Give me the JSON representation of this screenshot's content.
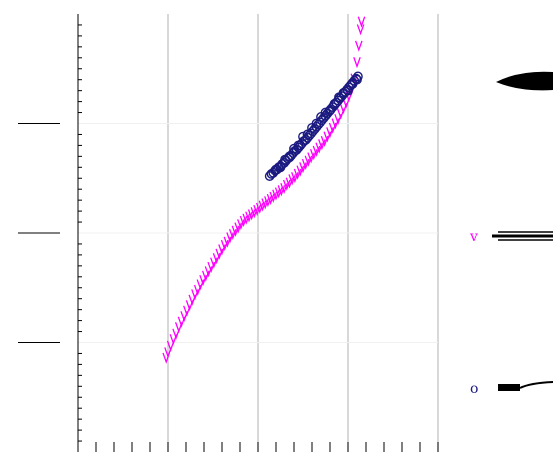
{
  "chart_data": {
    "type": "scatter",
    "title": "",
    "xlabel": "",
    "ylabel": "",
    "xlim": [
      0,
      4
    ],
    "ylim": [
      0,
      4
    ],
    "grid": {
      "vertical": true,
      "horizontal": true
    },
    "legend_position": "right",
    "series": [
      {
        "name": "v",
        "marker": "v",
        "color": "#ff00ff",
        "x": [
          0.98,
          1.0,
          1.03,
          1.06,
          1.09,
          1.12,
          1.15,
          1.18,
          1.21,
          1.24,
          1.27,
          1.3,
          1.33,
          1.36,
          1.39,
          1.42,
          1.45,
          1.48,
          1.51,
          1.54,
          1.57,
          1.6,
          1.63,
          1.66,
          1.69,
          1.72,
          1.75,
          1.78,
          1.81,
          1.84,
          1.87,
          1.9,
          1.93,
          1.96,
          1.99,
          2.02,
          2.05,
          2.08,
          2.11,
          2.14,
          2.17,
          2.2,
          2.23,
          2.26,
          2.29,
          2.32,
          2.35,
          2.38,
          2.41,
          2.44,
          2.47,
          2.5,
          2.53,
          2.56,
          2.59,
          2.62,
          2.65,
          2.68,
          2.71,
          2.74,
          2.77,
          2.8,
          2.83,
          2.86,
          2.89,
          2.92,
          2.95,
          2.98,
          3.01,
          3.04,
          3.07,
          3.1,
          3.12,
          3.14,
          3.15
        ],
        "y": [
          0.85,
          0.9,
          0.96,
          1.02,
          1.07,
          1.13,
          1.18,
          1.23,
          1.28,
          1.33,
          1.38,
          1.43,
          1.47,
          1.52,
          1.56,
          1.6,
          1.64,
          1.68,
          1.72,
          1.76,
          1.8,
          1.84,
          1.88,
          1.91,
          1.95,
          1.98,
          2.01,
          2.04,
          2.07,
          2.1,
          2.12,
          2.14,
          2.16,
          2.18,
          2.2,
          2.22,
          2.24,
          2.26,
          2.28,
          2.3,
          2.32,
          2.34,
          2.36,
          2.38,
          2.4,
          2.43,
          2.45,
          2.48,
          2.5,
          2.53,
          2.56,
          2.59,
          2.62,
          2.65,
          2.68,
          2.71,
          2.74,
          2.77,
          2.8,
          2.83,
          2.87,
          2.91,
          2.95,
          2.99,
          3.03,
          3.08,
          3.13,
          3.18,
          3.24,
          3.3,
          3.4,
          3.55,
          3.7,
          3.85,
          3.92
        ]
      },
      {
        "name": "o",
        "marker": "o",
        "color": "#1a1a80",
        "x": [
          2.13,
          2.15,
          2.17,
          2.19,
          2.21,
          2.23,
          2.25,
          2.27,
          2.29,
          2.31,
          2.33,
          2.35,
          2.37,
          2.39,
          2.41,
          2.43,
          2.45,
          2.47,
          2.49,
          2.51,
          2.53,
          2.55,
          2.57,
          2.59,
          2.61,
          2.63,
          2.65,
          2.67,
          2.69,
          2.71,
          2.73,
          2.75,
          2.77,
          2.79,
          2.81,
          2.83,
          2.85,
          2.87,
          2.89,
          2.91,
          2.93,
          2.95,
          2.97,
          2.99,
          3.01,
          3.03,
          3.05,
          3.07,
          3.09,
          3.11,
          2.2,
          2.3,
          2.4,
          2.5,
          2.6,
          2.7,
          2.8,
          2.9,
          3.0,
          3.1,
          2.25,
          2.35,
          2.45,
          2.55,
          2.65,
          2.75,
          2.85,
          2.95,
          3.05
        ],
        "y": [
          2.52,
          2.54,
          2.55,
          2.57,
          2.58,
          2.6,
          2.61,
          2.63,
          2.64,
          2.66,
          2.68,
          2.69,
          2.71,
          2.73,
          2.75,
          2.76,
          2.78,
          2.8,
          2.82,
          2.84,
          2.85,
          2.87,
          2.89,
          2.91,
          2.93,
          2.95,
          2.97,
          2.99,
          3.01,
          3.03,
          3.05,
          3.07,
          3.09,
          3.11,
          3.13,
          3.15,
          3.17,
          3.19,
          3.21,
          3.23,
          3.25,
          3.27,
          3.29,
          3.31,
          3.33,
          3.35,
          3.37,
          3.39,
          3.41,
          3.43,
          2.58,
          2.67,
          2.77,
          2.88,
          2.96,
          3.06,
          3.12,
          3.24,
          3.3,
          3.4,
          2.6,
          2.7,
          2.8,
          2.9,
          3.0,
          3.1,
          3.18,
          3.28,
          3.36
        ]
      }
    ],
    "legend": [
      {
        "label": "v",
        "color": "#ff00ff"
      },
      {
        "label": "o",
        "color": "#1a1a80"
      }
    ]
  }
}
